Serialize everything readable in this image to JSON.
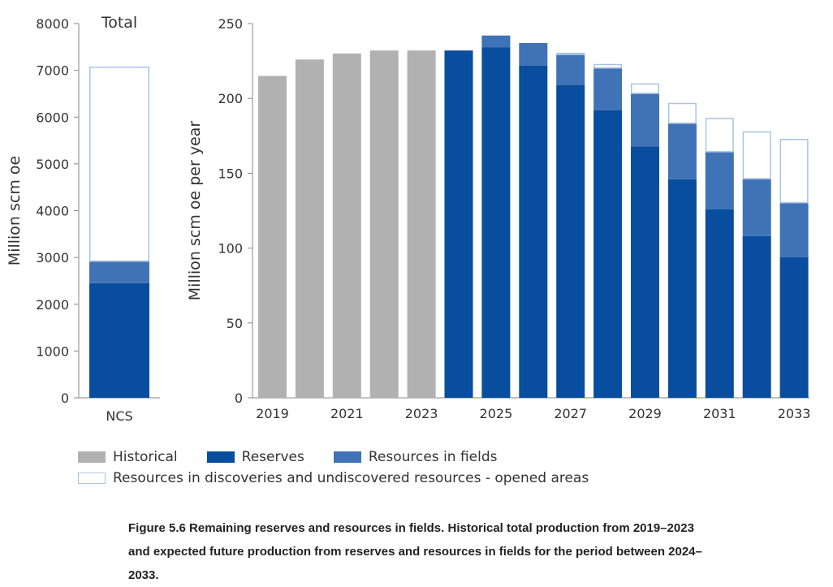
{
  "colors": {
    "historical": "#b1b1b1",
    "reserves": "#084d9e",
    "resources_in_fields": "#3f73b6",
    "discoveries_outline": "#a9c3e1",
    "axis": "#888888"
  },
  "legend": {
    "historical": "Historical",
    "reserves": "Reserves",
    "resources_in_fields": "Resources in fields",
    "discoveries": "Resources in discoveries and undiscovered resources - opened areas"
  },
  "caption": "Figure 5.6 Remaining reserves and resources in fields. Historical total production from 2019–2023 and expected future production from reserves and resources in fields for the period between 2024–2033.",
  "chart_data": [
    {
      "type": "bar",
      "stacked": true,
      "title": "Total",
      "ylabel": "Million scm oe",
      "ylim": [
        0,
        8000
      ],
      "yticks": [
        0,
        1000,
        2000,
        3000,
        4000,
        5000,
        6000,
        7000,
        8000
      ],
      "categories": [
        "NCS"
      ],
      "series": [
        {
          "name": "Reserves",
          "values": [
            2450
          ]
        },
        {
          "name": "Resources in fields",
          "values": [
            460
          ]
        },
        {
          "name": "Resources in discoveries and undiscovered resources - opened areas",
          "values": [
            4170
          ]
        }
      ]
    },
    {
      "type": "bar",
      "stacked": true,
      "ylabel": "Million scm oe per year",
      "ylim": [
        0,
        250
      ],
      "yticks": [
        0,
        50,
        100,
        150,
        200,
        250
      ],
      "categories": [
        "2019",
        "2020",
        "2021",
        "2022",
        "2023",
        "2024",
        "2025",
        "2026",
        "2027",
        "2028",
        "2029",
        "2030",
        "2031",
        "2032",
        "2033"
      ],
      "xtick_labels": [
        "2019",
        "",
        "2021",
        "",
        "2023",
        "",
        "2025",
        "",
        "2027",
        "",
        "2029",
        "",
        "2031",
        "",
        "2033"
      ],
      "series": [
        {
          "name": "Historical",
          "values": [
            215,
            226,
            230,
            232,
            232,
            0,
            0,
            0,
            0,
            0,
            0,
            0,
            0,
            0,
            0
          ]
        },
        {
          "name": "Reserves",
          "values": [
            0,
            0,
            0,
            0,
            0,
            232,
            234,
            222,
            209,
            192,
            168,
            146,
            126,
            108,
            94
          ]
        },
        {
          "name": "Resources in fields",
          "values": [
            0,
            0,
            0,
            0,
            0,
            0,
            8,
            15,
            20,
            28,
            35,
            37,
            38,
            38,
            36
          ]
        },
        {
          "name": "Resources in discoveries and undiscovered resources - opened areas",
          "values": [
            0,
            0,
            0,
            0,
            0,
            0,
            0,
            0,
            1.5,
            3,
            7,
            14,
            23,
            32,
            43
          ]
        }
      ]
    }
  ]
}
